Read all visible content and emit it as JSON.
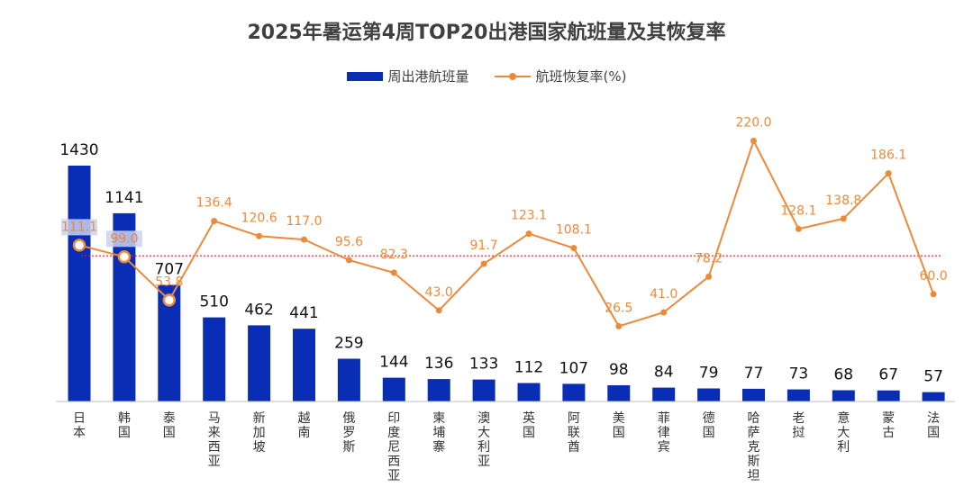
{
  "chart_data": {
    "type": "bar",
    "title": "2025年暑运第4周TOP20出港国家航班量及其恢复率",
    "categories": [
      "日本",
      "韩国",
      "泰国",
      "马来西亚",
      "新加坡",
      "越南",
      "俄罗斯",
      "印度尼西亚",
      "柬埔寨",
      "澳大利亚",
      "英国",
      "阿联酋",
      "美国",
      "菲律宾",
      "德国",
      "哈萨克斯坦",
      "老挝",
      "意大利",
      "蒙古",
      "法国"
    ],
    "series": [
      {
        "name": "周出港航班量",
        "type": "bar",
        "values": [
          1430,
          1141,
          707,
          510,
          462,
          441,
          259,
          144,
          136,
          133,
          112,
          107,
          98,
          84,
          79,
          77,
          73,
          68,
          67,
          57
        ],
        "color": "#0a2db5"
      },
      {
        "name": "航班恢复率(%)",
        "type": "line",
        "values": [
          111.1,
          99.0,
          53.8,
          136.4,
          120.6,
          117.0,
          95.6,
          82.3,
          43.0,
          91.7,
          123.1,
          108.1,
          26.5,
          41.0,
          78.2,
          220.0,
          128.1,
          138.8,
          186.1,
          60.0
        ],
        "color": "#ed8a3a"
      }
    ],
    "reference_line": {
      "value": 100,
      "style": "dotted",
      "color": "#e02020"
    },
    "legend_position": "top",
    "grid": false
  }
}
